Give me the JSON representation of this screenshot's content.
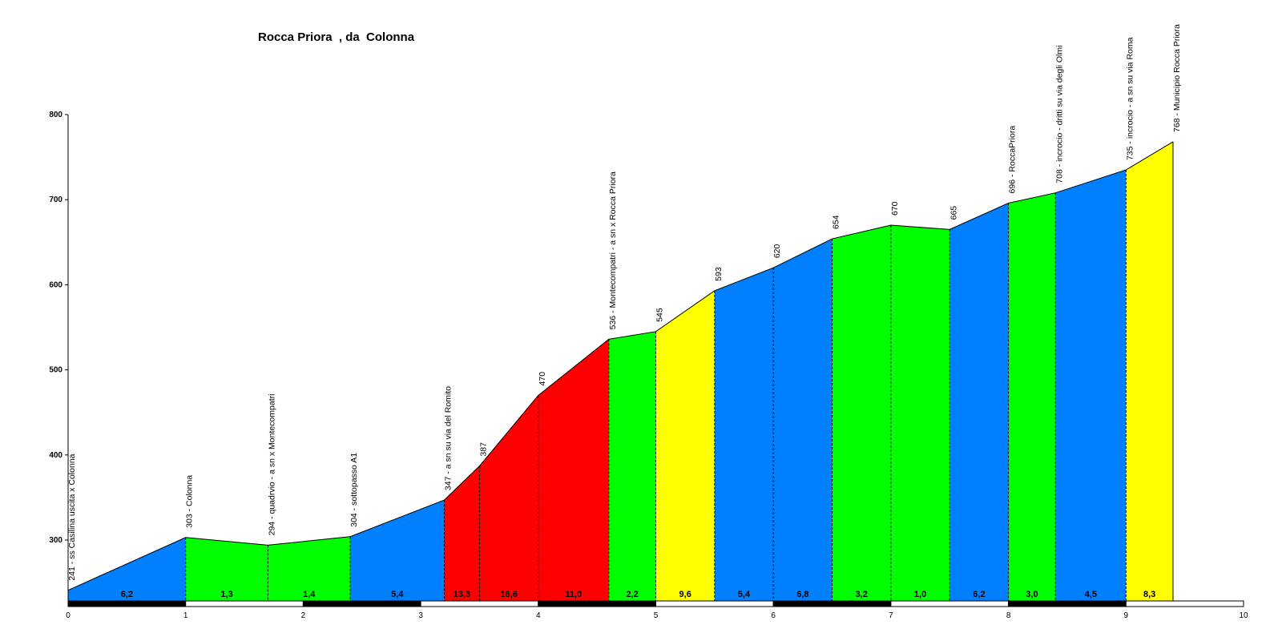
{
  "title": "Rocca Priora  , da  Colonna",
  "chart_data": {
    "type": "area",
    "title": "Rocca Priora  , da  Colonna",
    "xlabel": "",
    "ylabel": "",
    "xlim": [
      0,
      10
    ],
    "ylim": [
      220,
      800
    ],
    "y_ticks": [
      "300",
      "400",
      "500",
      "600",
      "700",
      "800"
    ],
    "x_ticks": [
      "0",
      "1",
      "2",
      "3",
      "4",
      "5",
      "6",
      "7",
      "8",
      "9",
      "10"
    ],
    "grid": false,
    "points": [
      {
        "x": 0.0,
        "y": 241,
        "label": "241 - ss Casilina uscita x Colonna"
      },
      {
        "x": 1.0,
        "y": 303,
        "label": "303 - Colonna"
      },
      {
        "x": 1.7,
        "y": 294,
        "label": "294 - quadrvio -  a sn x Montecompatri"
      },
      {
        "x": 2.4,
        "y": 304,
        "label": "304 - sottopasso A1"
      },
      {
        "x": 3.2,
        "y": 347,
        "label": "347 - a sn su via del Romito"
      },
      {
        "x": 3.5,
        "y": 387,
        "label": "387"
      },
      {
        "x": 4.0,
        "y": 470,
        "label": "470"
      },
      {
        "x": 4.6,
        "y": 536,
        "label": "536 - Montecompatri - a sn x Rocca Priora"
      },
      {
        "x": 5.0,
        "y": 545,
        "label": "545"
      },
      {
        "x": 5.5,
        "y": 593,
        "label": "593"
      },
      {
        "x": 6.0,
        "y": 620,
        "label": "620"
      },
      {
        "x": 6.5,
        "y": 654,
        "label": "654"
      },
      {
        "x": 7.0,
        "y": 670,
        "label": "670"
      },
      {
        "x": 7.5,
        "y": 665,
        "label": "665"
      },
      {
        "x": 8.0,
        "y": 696,
        "label": "696 - RoccaPriora"
      },
      {
        "x": 8.4,
        "y": 708,
        "label": "708 - incrocio - dritti su via degli Olmi"
      },
      {
        "x": 9.0,
        "y": 735,
        "label": "735 - incrocio - a sn su via Roma"
      },
      {
        "x": 9.4,
        "y": 768,
        "label": "768 - Municipio Rocca Priora"
      }
    ],
    "segments": [
      {
        "from": 0.0,
        "to": 1.0,
        "gradient": "6,2",
        "color": "#0080ff"
      },
      {
        "from": 1.0,
        "to": 1.7,
        "gradient": "1,3",
        "color": "#00ff00"
      },
      {
        "from": 1.7,
        "to": 2.4,
        "gradient": "1,4",
        "color": "#00ff00"
      },
      {
        "from": 2.4,
        "to": 3.2,
        "gradient": "5,4",
        "color": "#0080ff"
      },
      {
        "from": 3.2,
        "to": 3.5,
        "gradient": "13,3",
        "color": "#ff0000"
      },
      {
        "from": 3.5,
        "to": 4.0,
        "gradient": "16,6",
        "color": "#ff0000"
      },
      {
        "from": 4.0,
        "to": 4.6,
        "gradient": "11,0",
        "color": "#ff0000"
      },
      {
        "from": 4.6,
        "to": 5.0,
        "gradient": "2,2",
        "color": "#00ff00"
      },
      {
        "from": 5.0,
        "to": 5.5,
        "gradient": "9,6",
        "color": "#ffff00"
      },
      {
        "from": 5.5,
        "to": 6.0,
        "gradient": "5,4",
        "color": "#0080ff"
      },
      {
        "from": 6.0,
        "to": 6.5,
        "gradient": "6,8",
        "color": "#0080ff"
      },
      {
        "from": 6.5,
        "to": 7.0,
        "gradient": "3,2",
        "color": "#00ff00"
      },
      {
        "from": 7.0,
        "to": 7.5,
        "gradient": "1,0",
        "color": "#00ff00"
      },
      {
        "from": 7.5,
        "to": 8.0,
        "gradient": "6,2",
        "color": "#0080ff"
      },
      {
        "from": 8.0,
        "to": 8.4,
        "gradient": "3,0",
        "color": "#00ff00"
      },
      {
        "from": 8.4,
        "to": 9.0,
        "gradient": "4,5",
        "color": "#0080ff"
      },
      {
        "from": 9.0,
        "to": 9.4,
        "gradient": "8,3",
        "color": "#ffff00"
      }
    ]
  }
}
